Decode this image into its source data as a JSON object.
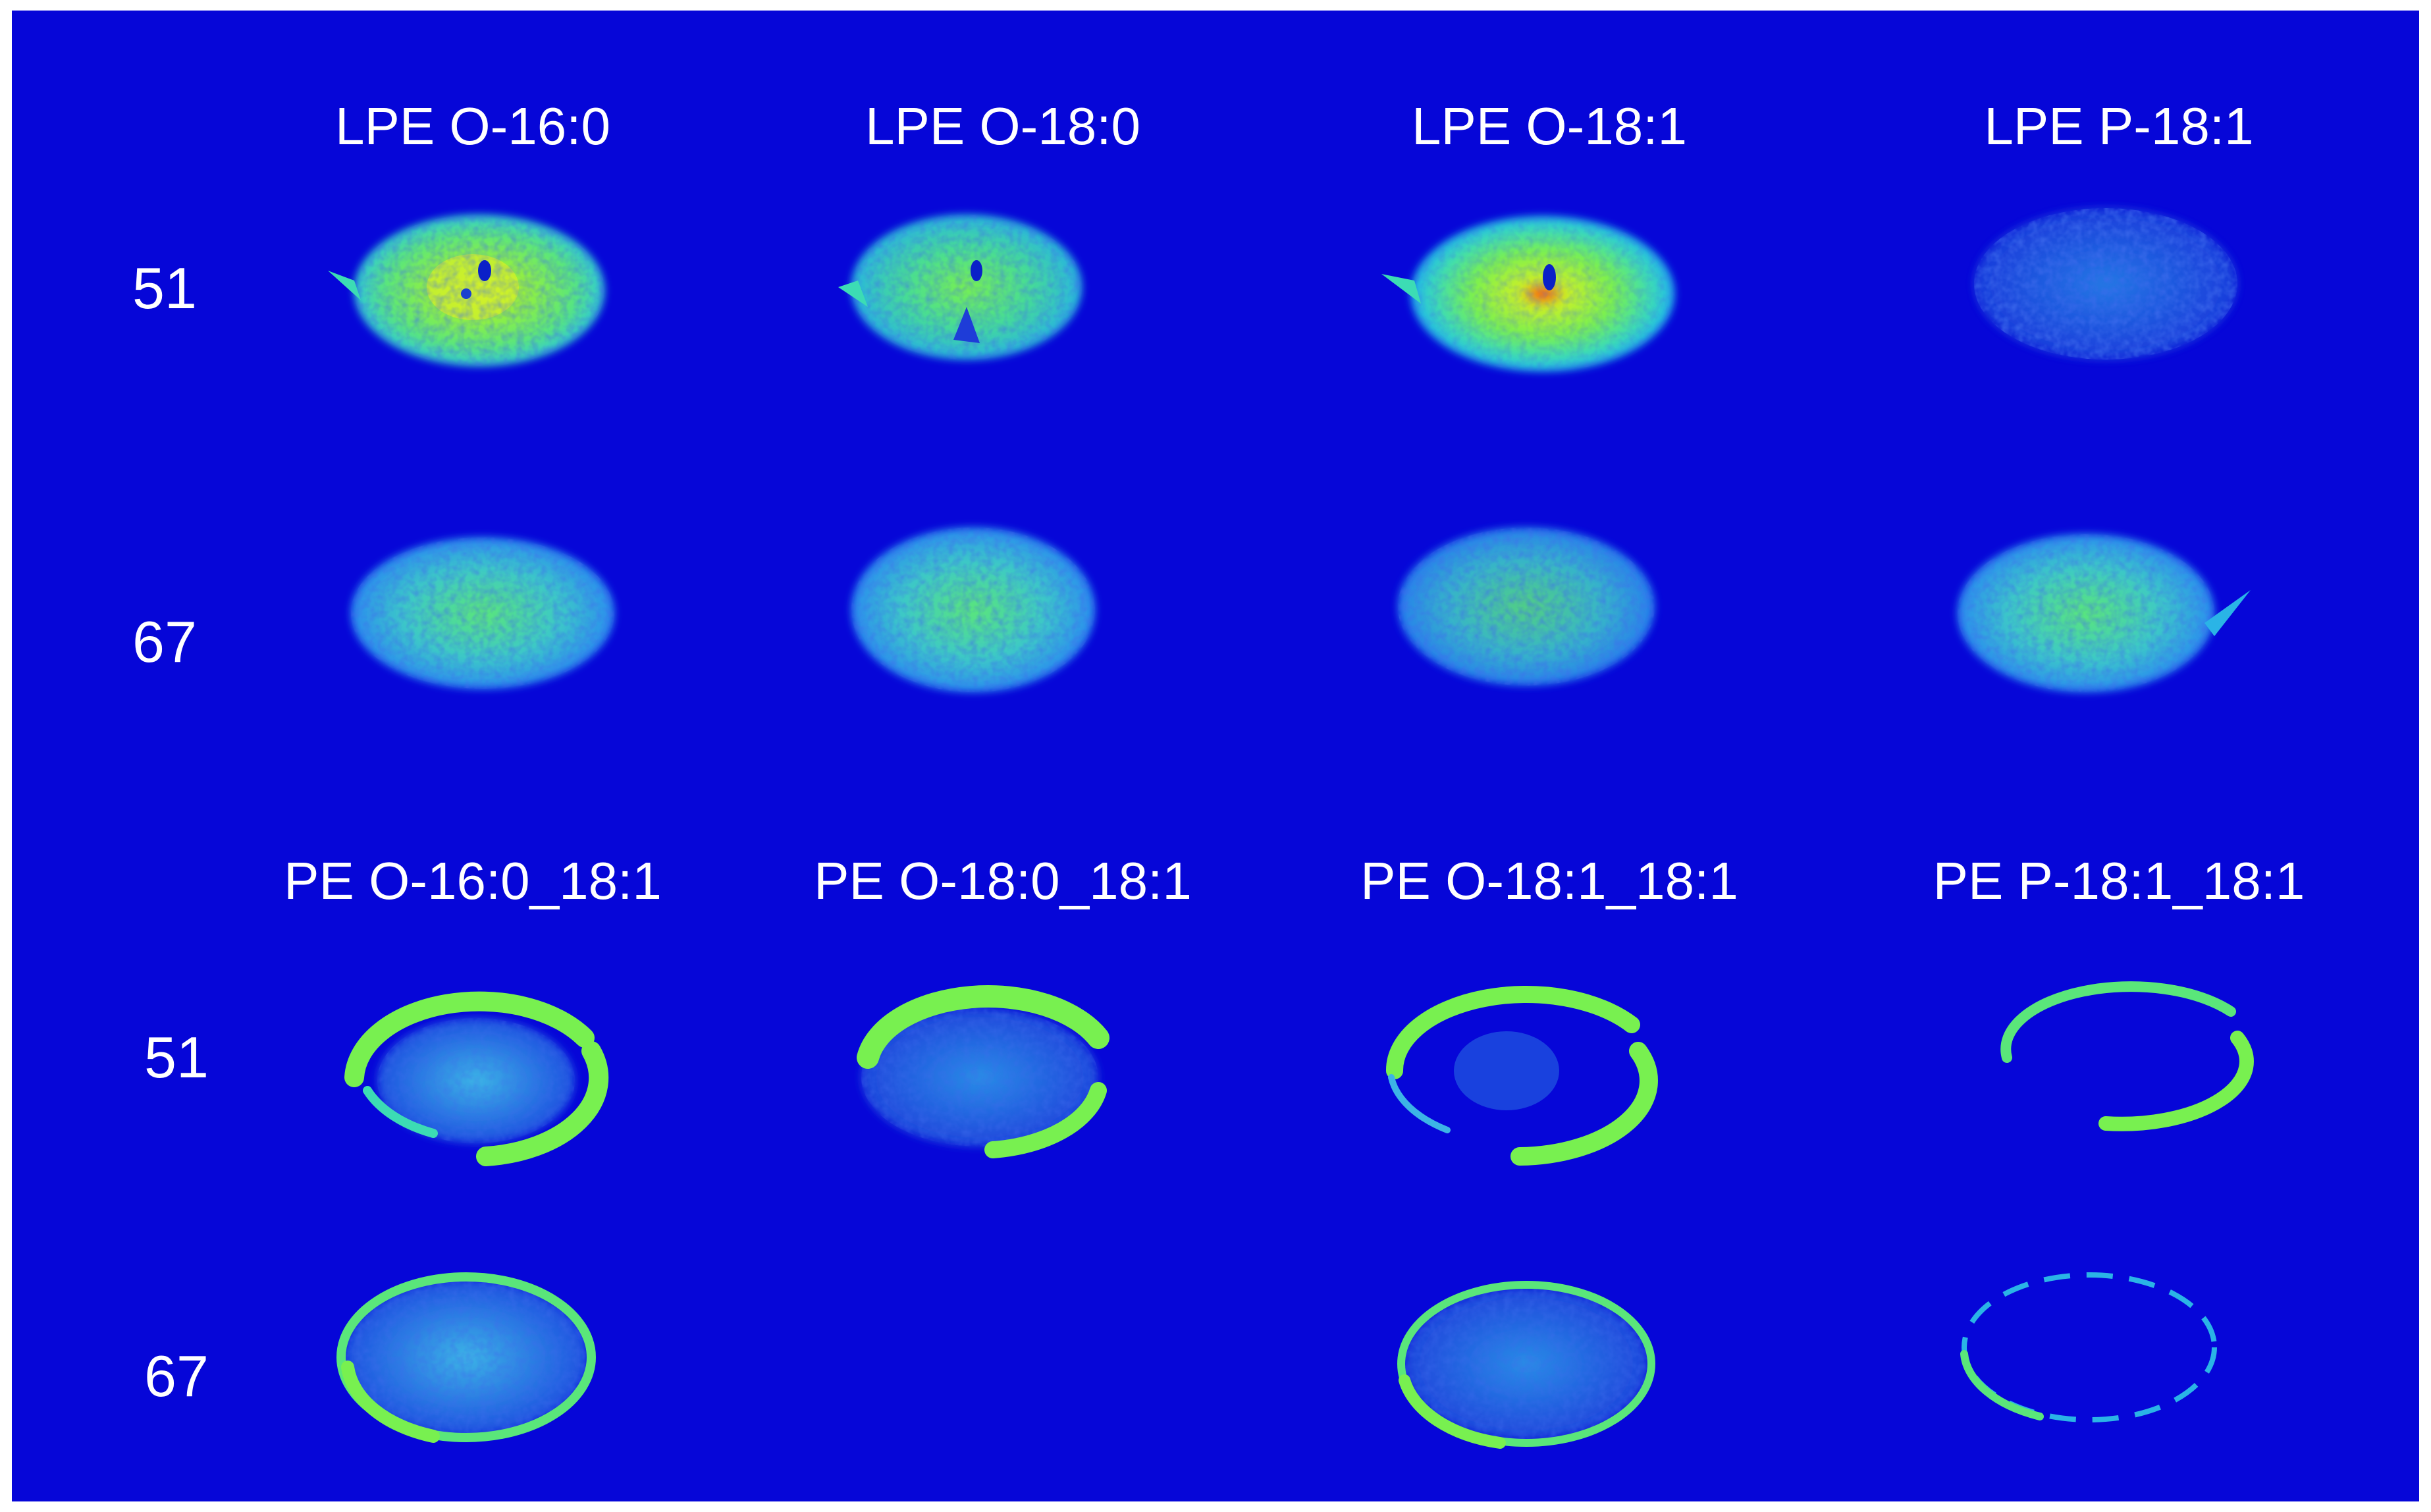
{
  "colors": {
    "background": "#0606d8",
    "frame": "#ffffff",
    "text": "#ffffff",
    "colormap": [
      "#0606d8",
      "#1e64f0",
      "#1eb4f0",
      "#3cdcb4",
      "#78f050",
      "#c8f028",
      "#ff2a00"
    ]
  },
  "top_panel": {
    "column_titles": [
      "LPE O-16:0",
      "LPE O-18:0",
      "LPE O-18:1",
      "LPE P-18:1"
    ],
    "row_labels": [
      "51",
      "67"
    ]
  },
  "bottom_panel": {
    "column_titles": [
      "PE O-16:0_18:1",
      "PE O-18:0_18:1",
      "PE O-18:1_18:1",
      "PE P-18:1_18:1"
    ],
    "row_labels": [
      "51",
      "67"
    ]
  }
}
